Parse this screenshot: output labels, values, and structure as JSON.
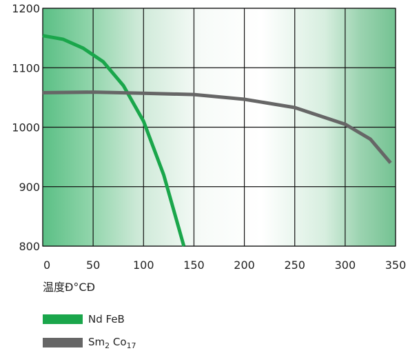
{
  "chart_data": {
    "type": "line",
    "xlabel": "温度Đ°CĐ",
    "ylabel": "",
    "xlim": [
      0,
      350
    ],
    "ylim": [
      800,
      1200
    ],
    "x_ticks": [
      0,
      50,
      100,
      150,
      200,
      250,
      300,
      350
    ],
    "y_ticks": [
      800,
      900,
      1000,
      1100,
      1200
    ],
    "grid": true,
    "legend_position": "bottom-left",
    "series": [
      {
        "name": "Nd FeB",
        "color": "#1aa64b",
        "points": [
          [
            0,
            1154
          ],
          [
            20,
            1148
          ],
          [
            40,
            1133
          ],
          [
            60,
            1110
          ],
          [
            80,
            1070
          ],
          [
            100,
            1010
          ],
          [
            120,
            920
          ],
          [
            135,
            830
          ],
          [
            140,
            800
          ]
        ]
      },
      {
        "name": "Sm2 Co17",
        "name_parts": {
          "base": "Sm",
          "sub1": "2",
          "mid": " Co",
          "sub2": "17"
        },
        "color": "#666666",
        "points": [
          [
            0,
            1058
          ],
          [
            50,
            1059
          ],
          [
            100,
            1057
          ],
          [
            150,
            1055
          ],
          [
            200,
            1047
          ],
          [
            250,
            1033
          ],
          [
            300,
            1005
          ],
          [
            325,
            980
          ],
          [
            345,
            940
          ]
        ]
      }
    ]
  }
}
